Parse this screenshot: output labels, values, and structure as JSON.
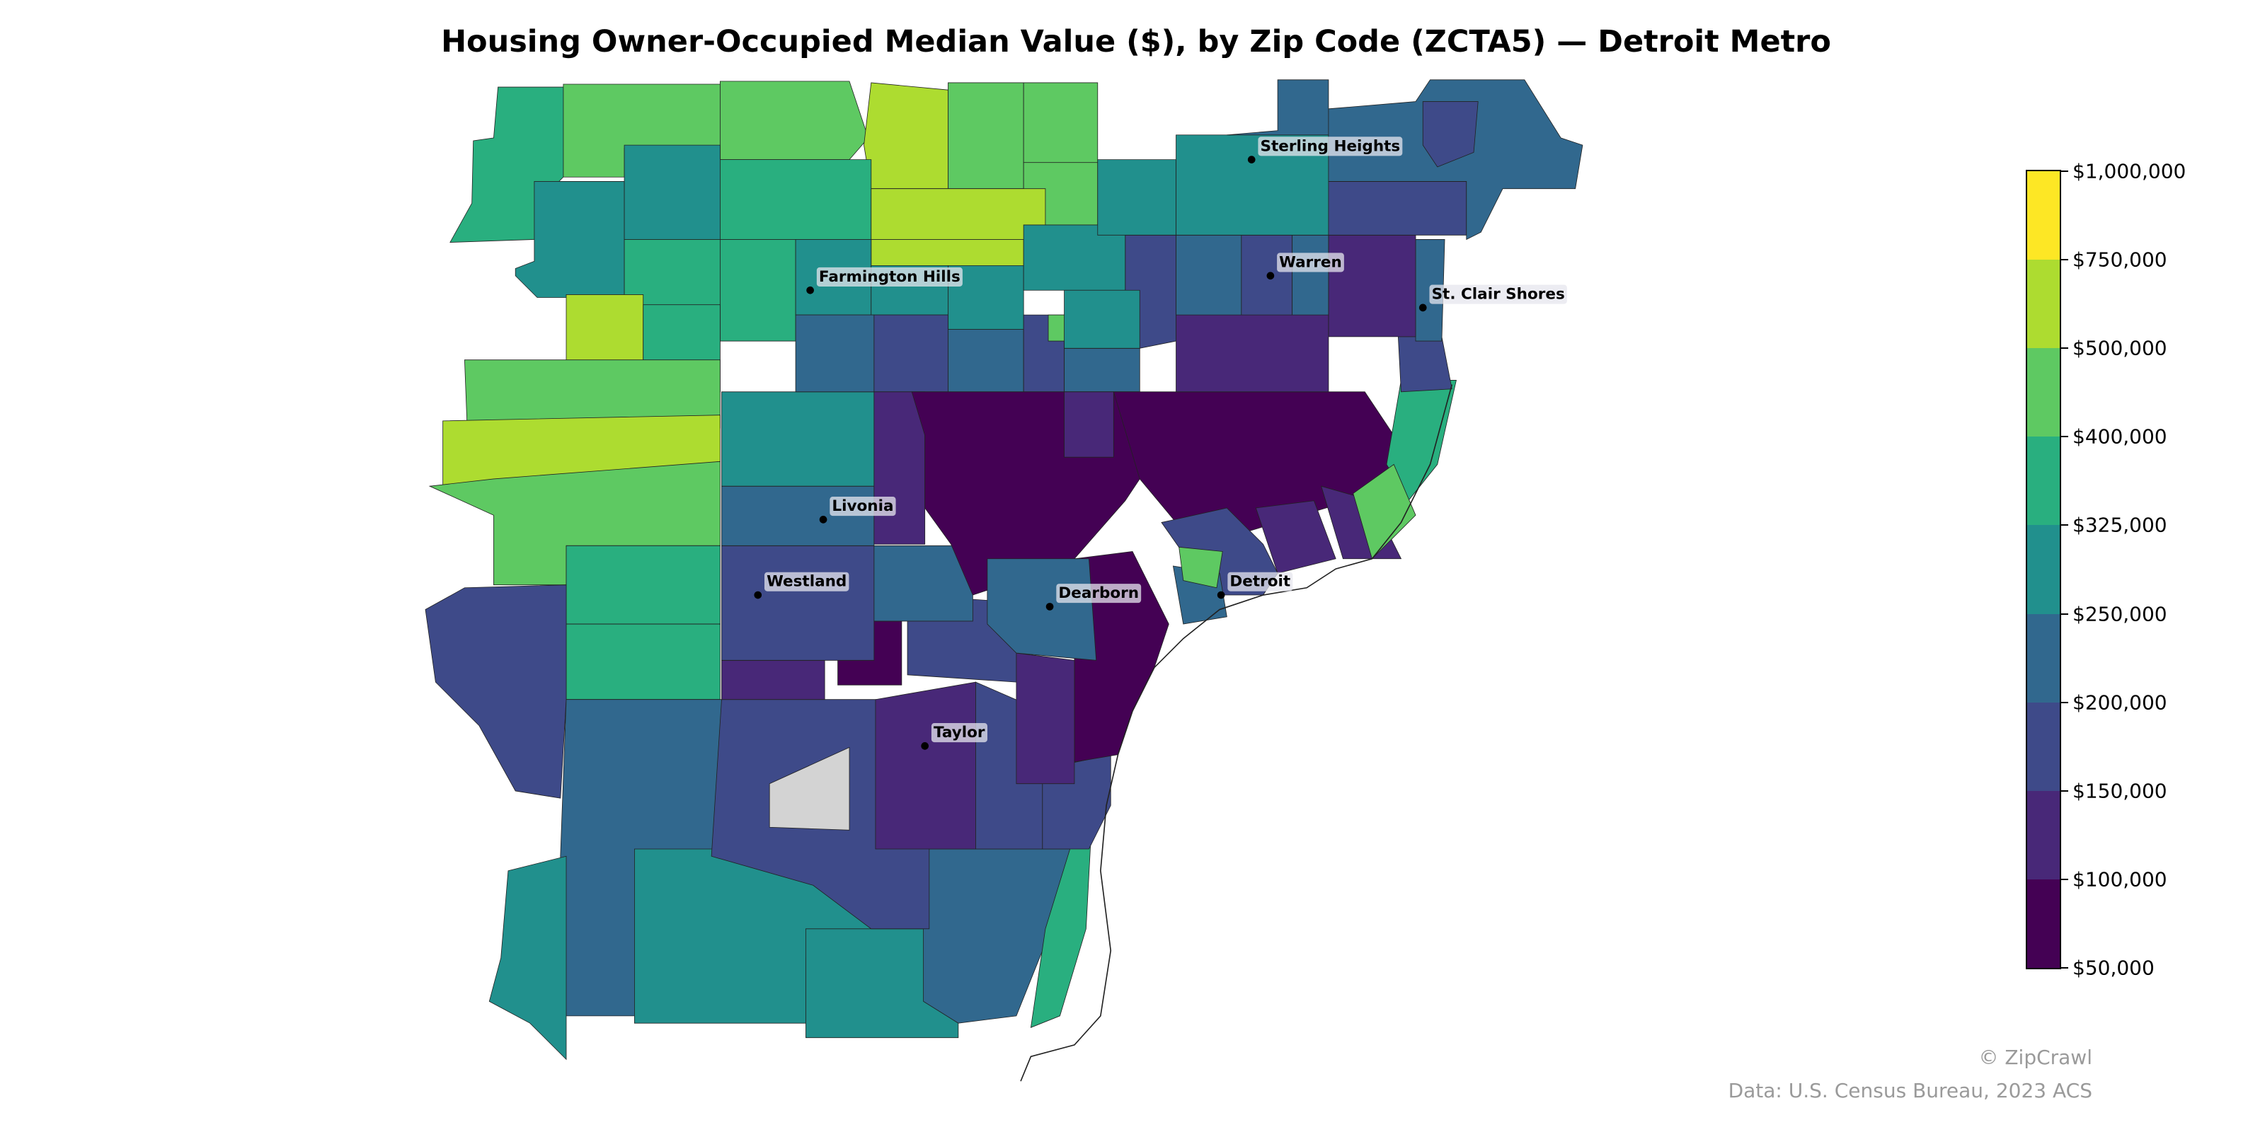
{
  "title": "Housing Owner-Occupied Median Value ($), by Zip Code (ZCTA5) — Detroit Metro",
  "chart_data": {
    "type": "choropleth",
    "title": "Housing Owner-Occupied Median Value ($), by Zip Code (ZCTA5) — Detroit Metro",
    "legend_placement": "right",
    "colorbar": {
      "ticks": [
        "$50,000",
        "$100,000",
        "$150,000",
        "$200,000",
        "$250,000",
        "$325,000",
        "$400,000",
        "$500,000",
        "$750,000",
        "$1,000,000"
      ],
      "bin_colors": [
        "#440154",
        "#482878",
        "#3e4a89",
        "#31688e",
        "#21908d",
        "#29af7f",
        "#5ec962",
        "#addc30",
        "#fde725"
      ]
    },
    "no_data_color": "#d3d3d3",
    "cities": [
      {
        "name": "Sterling Heights"
      },
      {
        "name": "Farmington Hills"
      },
      {
        "name": "Warren"
      },
      {
        "name": "St. Clair Shores"
      },
      {
        "name": "Livonia"
      },
      {
        "name": "Westland"
      },
      {
        "name": "Dearborn"
      },
      {
        "name": "Detroit"
      },
      {
        "name": "Taylor"
      }
    ]
  },
  "footer": {
    "credit": "© ZipCrawl",
    "source": "Data: U.S. Census Bureau, 2023 ACS"
  }
}
